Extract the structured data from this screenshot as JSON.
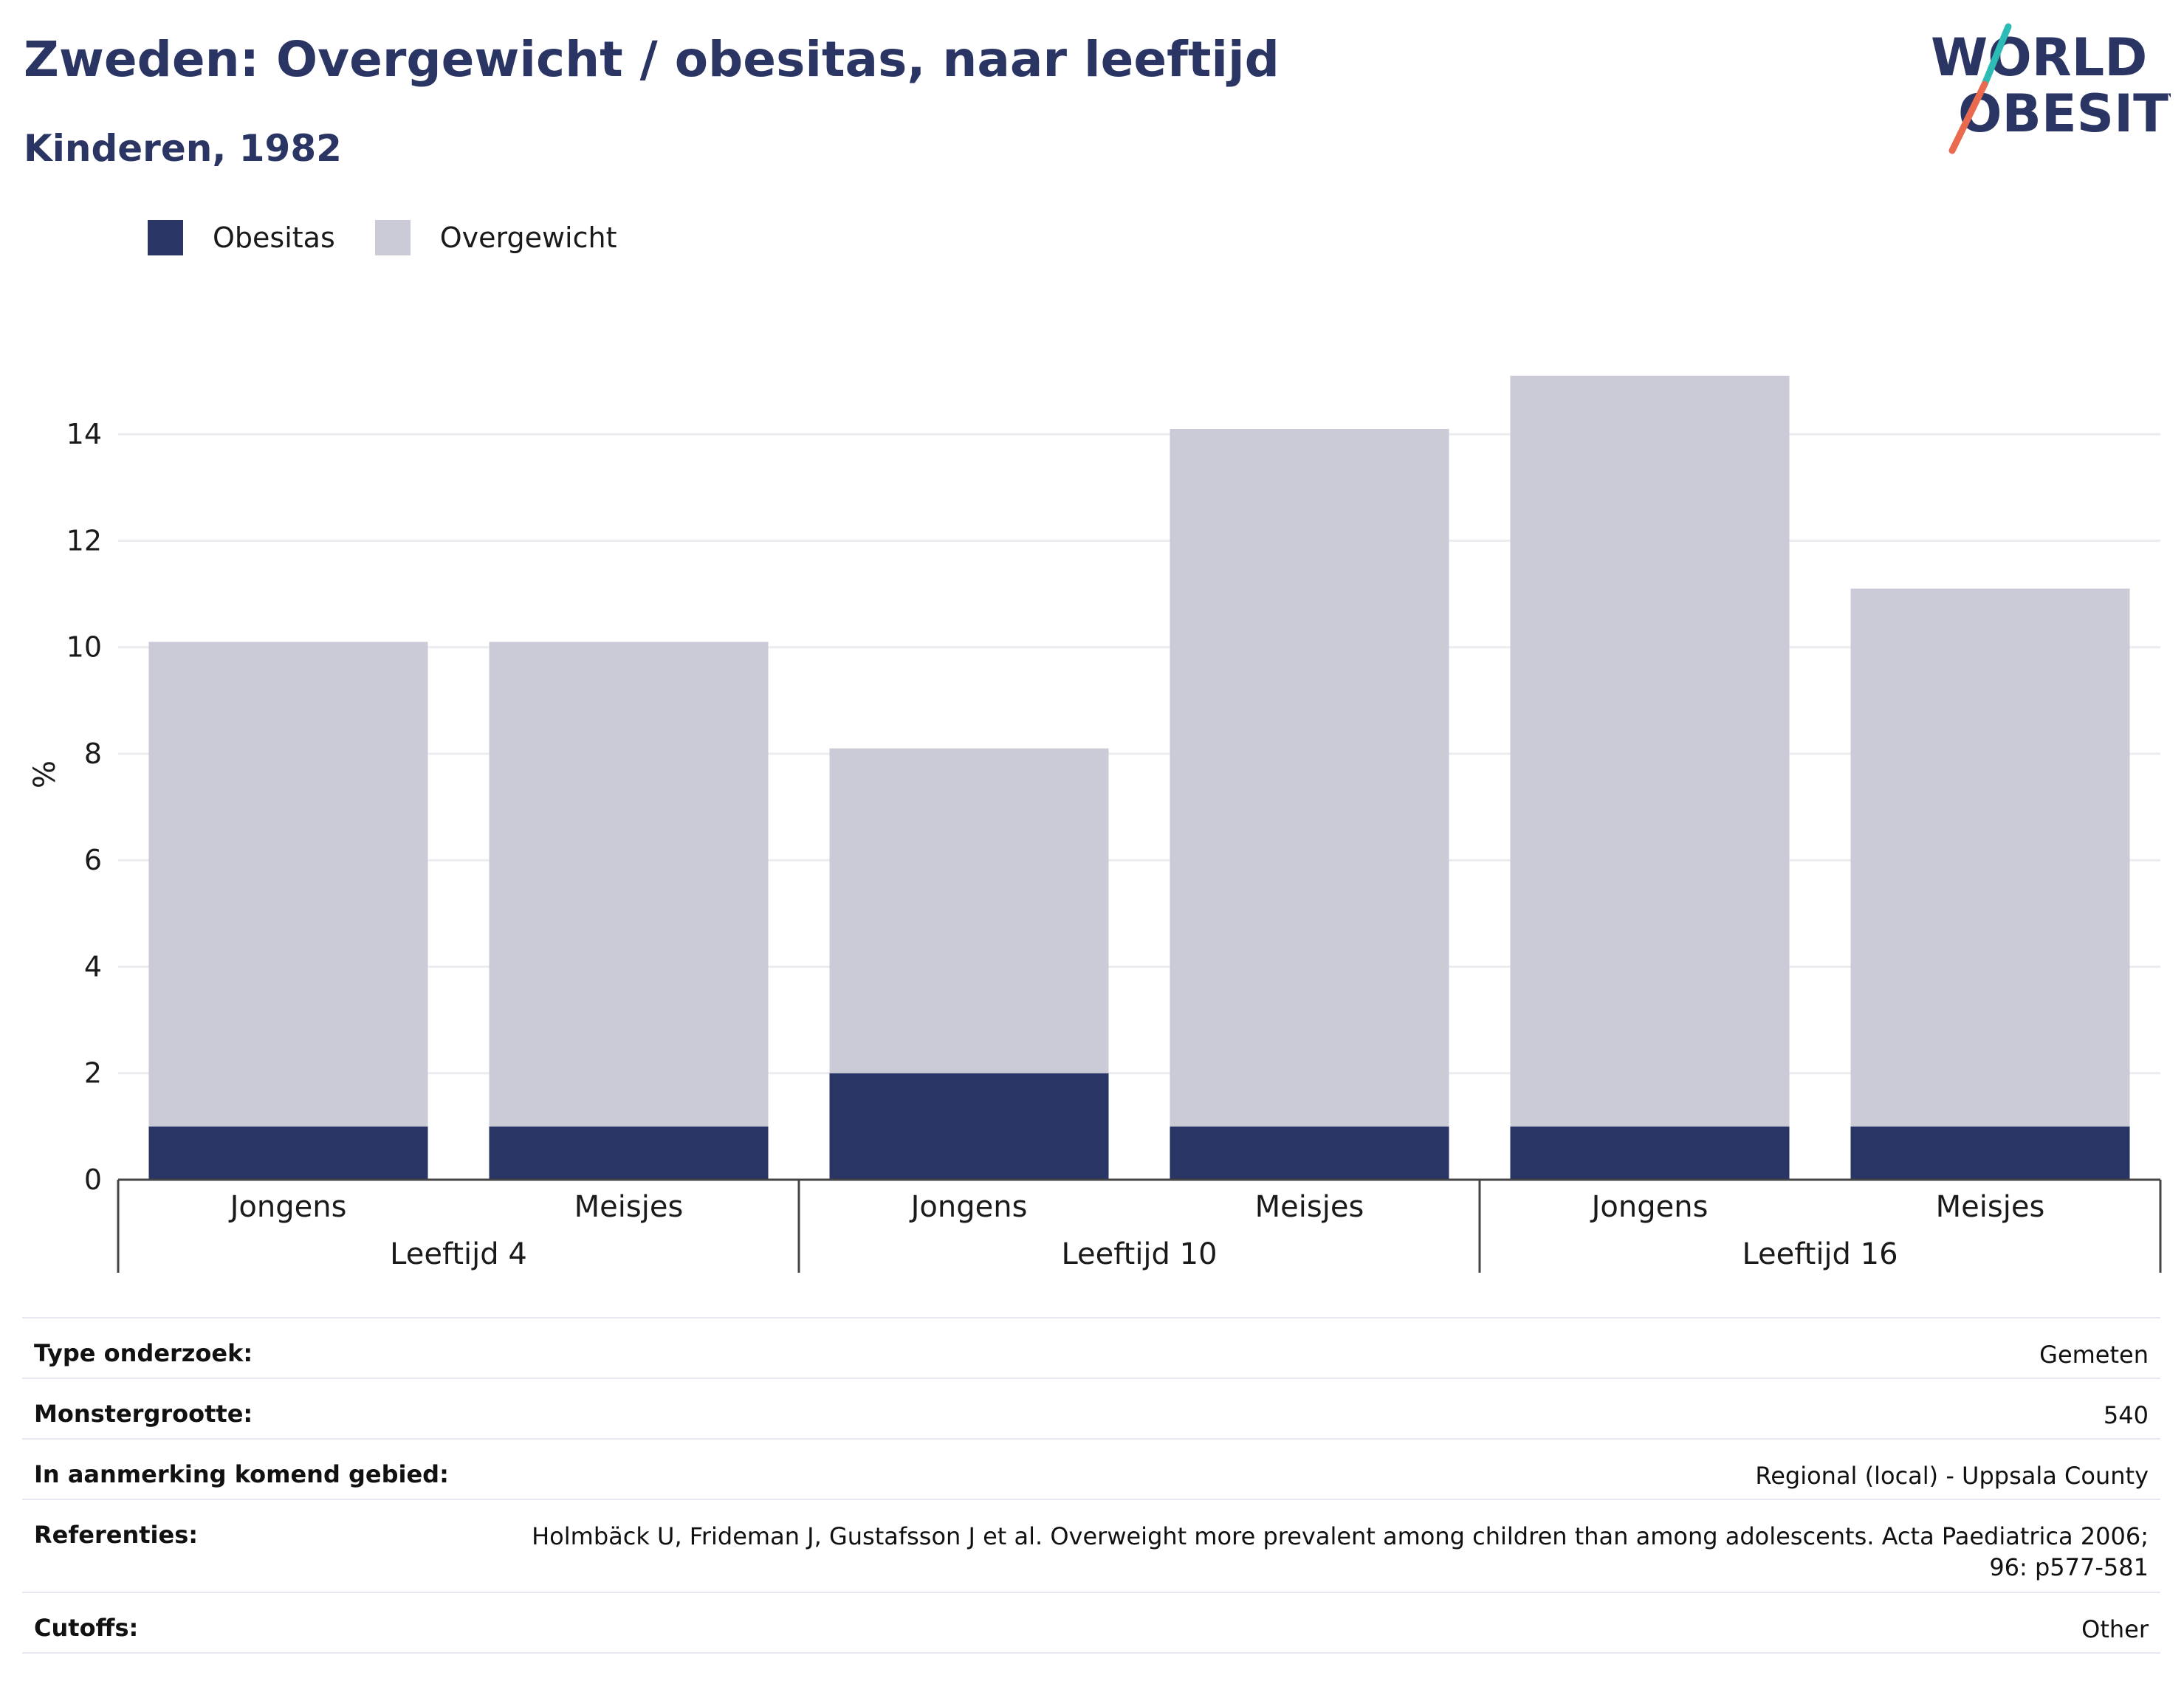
{
  "header": {
    "title": "Zweden: Overgewicht / obesitas, naar leeftijd",
    "subtitle": "Kinderen, 1982",
    "logo_line1": "WORLD",
    "logo_line2": "OBESITY"
  },
  "legend": [
    {
      "label": "Obesitas",
      "color": "#293564"
    },
    {
      "label": "Overgewicht",
      "color": "#cacbd7"
    }
  ],
  "chart_data": {
    "type": "bar",
    "stacked": true,
    "ylabel": "%",
    "ylim": [
      0,
      15.5
    ],
    "yticks": [
      0,
      2,
      4,
      6,
      8,
      10,
      12,
      14
    ],
    "grid": true,
    "legend_position": "top-left",
    "groups": [
      {
        "label": "Leeftijd 4",
        "categories": [
          "Jongens",
          "Meisjes"
        ]
      },
      {
        "label": "Leeftijd 10",
        "categories": [
          "Jongens",
          "Meisjes"
        ]
      },
      {
        "label": "Leeftijd 16",
        "categories": [
          "Jongens",
          "Meisjes"
        ]
      }
    ],
    "series": [
      {
        "name": "Obesitas",
        "color": "#293564",
        "values": [
          1,
          1,
          2,
          1,
          1,
          1
        ]
      },
      {
        "name": "Overgewicht",
        "color": "#cacbd7",
        "values": [
          9.1,
          9.1,
          6.1,
          13.1,
          14.1,
          10.1
        ]
      }
    ]
  },
  "info": [
    {
      "label": "Type onderzoek:",
      "value": "Gemeten"
    },
    {
      "label": "Monstergrootte:",
      "value": "540"
    },
    {
      "label": "In aanmerking komend gebied:",
      "value": "Regional (local) - Uppsala County"
    },
    {
      "label": "Referenties:",
      "value": "Holmbäck U, Frideman J, Gustafsson J et al. Overweight more prevalent among children than among adolescents. Acta Paediatrica 2006; 96: p577-581"
    },
    {
      "label": "Cutoffs:",
      "value": "Other"
    }
  ]
}
